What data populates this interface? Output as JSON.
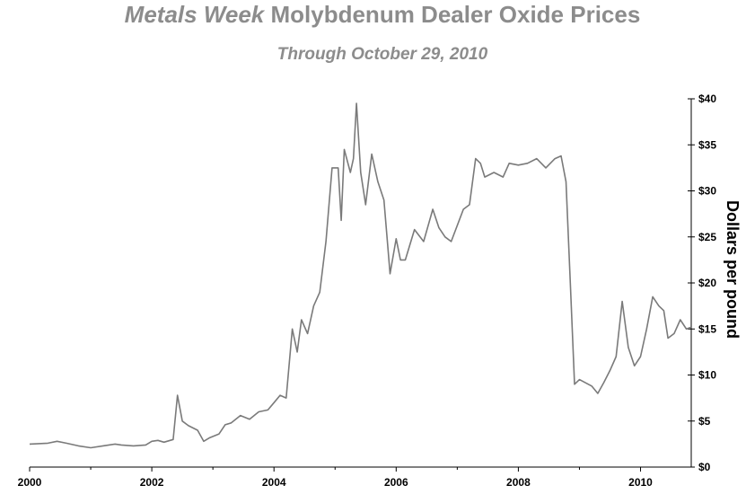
{
  "chart_data": {
    "type": "line",
    "title_italic": "Metals Week",
    "title_rest": " Molybdenum Dealer Oxide Prices",
    "subtitle": "Through October 29, 2010",
    "xlabel": "",
    "ylabel": "Dollars per pound",
    "xlim": [
      2000,
      2010.83
    ],
    "ylim": [
      0,
      40
    ],
    "x_ticks": [
      {
        "value": 2000,
        "label": "2000"
      },
      {
        "value": 2002,
        "label": "2002"
      },
      {
        "value": 2004,
        "label": "2004"
      },
      {
        "value": 2006,
        "label": "2006"
      },
      {
        "value": 2008,
        "label": "2008"
      },
      {
        "value": 2010,
        "label": "2010"
      }
    ],
    "y_ticks": [
      {
        "value": 0,
        "label": "$0"
      },
      {
        "value": 5,
        "label": "$5"
      },
      {
        "value": 10,
        "label": "$10"
      },
      {
        "value": 15,
        "label": "$15"
      },
      {
        "value": 20,
        "label": "$20"
      },
      {
        "value": 25,
        "label": "$25"
      },
      {
        "value": 30,
        "label": "$30"
      },
      {
        "value": 35,
        "label": "$35"
      },
      {
        "value": 40,
        "label": "$40"
      }
    ],
    "y_axis_side": "right",
    "grid": false,
    "line_color": "#7a7a7a",
    "series": [
      {
        "x": [
          2000.0,
          2000.3,
          2000.45,
          2000.6,
          2000.8,
          2001.0,
          2001.2,
          2001.4,
          2001.5,
          2001.7,
          2001.9,
          2002.0,
          2002.1,
          2002.2,
          2002.35,
          2002.42,
          2002.5,
          2002.6,
          2002.75,
          2002.85,
          2002.95,
          2003.1,
          2003.2,
          2003.3,
          2003.45,
          2003.6,
          2003.75,
          2003.9,
          2004.0,
          2004.1,
          2004.2,
          2004.3,
          2004.38,
          2004.45,
          2004.55,
          2004.65,
          2004.75,
          2004.85,
          2004.95,
          2005.05,
          2005.1,
          2005.15,
          2005.25,
          2005.3,
          2005.35,
          2005.42,
          2005.5,
          2005.6,
          2005.7,
          2005.8,
          2005.9,
          2006.0,
          2006.07,
          2006.15,
          2006.3,
          2006.45,
          2006.6,
          2006.7,
          2006.8,
          2006.9,
          2007.1,
          2007.2,
          2007.3,
          2007.38,
          2007.45,
          2007.6,
          2007.75,
          2007.85,
          2008.0,
          2008.15,
          2008.3,
          2008.45,
          2008.6,
          2008.7,
          2008.78,
          2008.85,
          2008.92,
          2009.0,
          2009.2,
          2009.3,
          2009.4,
          2009.5,
          2009.6,
          2009.7,
          2009.8,
          2009.9,
          2010.0,
          2010.1,
          2010.2,
          2010.3,
          2010.38,
          2010.45,
          2010.55,
          2010.65,
          2010.75,
          2010.83
        ],
        "y": [
          2.5,
          2.6,
          2.8,
          2.6,
          2.3,
          2.1,
          2.3,
          2.5,
          2.4,
          2.3,
          2.4,
          2.8,
          2.9,
          2.7,
          3.0,
          7.8,
          5.0,
          4.5,
          4.0,
          2.8,
          3.2,
          3.6,
          4.6,
          4.8,
          5.6,
          5.2,
          6.0,
          6.2,
          7.0,
          7.8,
          7.5,
          15.0,
          12.5,
          16.0,
          14.5,
          17.5,
          19.0,
          24.5,
          32.5,
          32.5,
          26.8,
          34.5,
          32.0,
          33.5,
          39.5,
          32.0,
          28.5,
          34.0,
          31.0,
          29.0,
          21.0,
          24.8,
          22.5,
          22.5,
          25.8,
          24.5,
          28.0,
          26.0,
          25.0,
          24.5,
          28.0,
          28.5,
          33.5,
          33.0,
          31.5,
          32.0,
          31.5,
          33.0,
          32.8,
          33.0,
          33.5,
          32.5,
          33.5,
          33.8,
          31.0,
          20.0,
          9.0,
          9.5,
          8.8,
          8.0,
          9.2,
          10.5,
          12.0,
          18.0,
          13.0,
          11.0,
          12.0,
          15.0,
          18.5,
          17.5,
          17.0,
          14.0,
          14.5,
          16.0,
          15.0,
          15.2
        ]
      }
    ]
  }
}
